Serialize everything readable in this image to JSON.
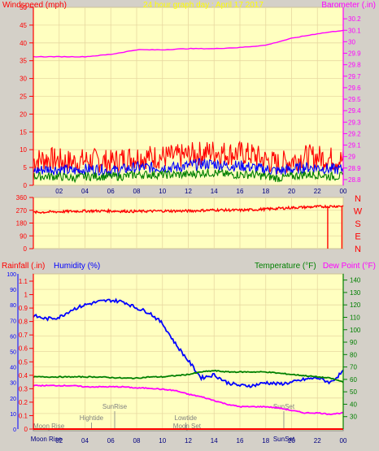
{
  "chart_data": [
    {
      "type": "line",
      "title": "24 hour graph day : April 17 2017",
      "ylabel": "Windspeed (mph)",
      "y2label": "Barometer (.in)",
      "xticks": [
        "02",
        "04",
        "06",
        "08",
        "10",
        "12",
        "14",
        "16",
        "18",
        "20",
        "22",
        "00"
      ],
      "ylim": [
        0,
        50
      ],
      "yticks": [
        "0",
        "5",
        "10",
        "15",
        "20",
        "25",
        "30",
        "35",
        "40",
        "45",
        "50"
      ],
      "y2lim": [
        28.75,
        30.3
      ],
      "y2ticks": [
        "28.8",
        "28.9",
        "29",
        "29.1",
        "29.2",
        "29.3",
        "29.4",
        "29.5",
        "29.6",
        "29.7",
        "29.8",
        "29.9",
        "30",
        "30.1",
        "30.2"
      ],
      "series": [
        {
          "name": "Windspeed (mph)",
          "color": "#ff0000",
          "x": [
            0,
            1,
            2,
            3,
            4,
            5,
            6,
            7,
            8,
            9,
            10,
            11,
            12,
            13,
            14,
            15,
            16,
            17,
            18,
            19,
            20,
            21,
            22,
            23,
            24
          ],
          "values": [
            7,
            7.5,
            7,
            6.5,
            7,
            7,
            6.5,
            7.5,
            8,
            8,
            8,
            8,
            8.5,
            9,
            9.5,
            9,
            9,
            8.5,
            7,
            6,
            7,
            8,
            8,
            7.5,
            7
          ]
        },
        {
          "name": "Wind average",
          "color": "#0000ff",
          "x": [
            0,
            1,
            2,
            3,
            4,
            5,
            6,
            7,
            8,
            9,
            10,
            11,
            12,
            13,
            14,
            15,
            16,
            17,
            18,
            19,
            20,
            21,
            22,
            23,
            24
          ],
          "values": [
            4,
            4.5,
            4.5,
            4,
            4.5,
            4.5,
            4,
            4.5,
            5,
            5,
            5,
            5,
            5.5,
            6,
            6,
            5.5,
            5.5,
            5,
            4.5,
            4,
            4.5,
            5,
            5,
            4.5,
            4.5
          ]
        },
        {
          "name": "Wind gust",
          "color": "#008000",
          "x": [
            0,
            1,
            2,
            3,
            4,
            5,
            6,
            7,
            8,
            9,
            10,
            11,
            12,
            13,
            14,
            15,
            16,
            17,
            18,
            19,
            20,
            21,
            22,
            23,
            24
          ],
          "values": [
            2.5,
            2.5,
            2.5,
            2,
            2.5,
            2.5,
            2.5,
            2.5,
            3,
            3,
            3,
            3,
            3,
            3.5,
            3.5,
            3,
            3,
            3,
            2.5,
            2,
            2.5,
            3,
            3,
            2.5,
            2.5
          ]
        },
        {
          "name": "Barometer (.in)",
          "color": "#ff00ff",
          "axis": "y2",
          "x": [
            0,
            2,
            4,
            6,
            8,
            10,
            12,
            14,
            16,
            18,
            20,
            22,
            24
          ],
          "values": [
            29.87,
            29.87,
            29.87,
            29.89,
            29.93,
            29.93,
            29.94,
            29.94,
            29.95,
            29.97,
            30.03,
            30.07,
            30.1
          ]
        }
      ]
    },
    {
      "type": "line",
      "ylabel": "Wind direction",
      "ylim": [
        0,
        360
      ],
      "yticks": [
        "0",
        "90",
        "180",
        "270",
        "360"
      ],
      "compass": [
        "N",
        "W",
        "S",
        "E",
        "N"
      ],
      "series": [
        {
          "name": "Wind direction",
          "color": "#ff0000",
          "x": [
            0,
            2,
            4,
            6,
            8,
            10,
            12,
            14,
            16,
            18,
            20,
            22,
            24
          ],
          "values": [
            255,
            260,
            265,
            265,
            262,
            265,
            265,
            272,
            270,
            278,
            288,
            295,
            300
          ],
          "spikes": [
            {
              "x": 22.8,
              "value": 0
            },
            {
              "x": 23.9,
              "value": 0
            }
          ]
        }
      ]
    },
    {
      "type": "line",
      "ylabel": "Rainfall (.in)",
      "y2label": "Humidity (%)",
      "y3label": "Temperature (°F)",
      "y4label": "Dew Point (°F)",
      "xticks": [
        "02",
        "04",
        "06",
        "08",
        "10",
        "12",
        "14",
        "16",
        "18",
        "20",
        "22",
        "00"
      ],
      "ylim": [
        0,
        100
      ],
      "yticks": [
        "0",
        "10",
        "20",
        "30",
        "40",
        "50",
        "60",
        "70",
        "80",
        "90",
        "100"
      ],
      "rain_ticks": [
        "0",
        "0.1",
        "0.2",
        "0.3",
        "0.4",
        "0.5",
        "0.6",
        "0.7",
        "0.8",
        "0.9",
        "1",
        "1.1"
      ],
      "temp_lim": [
        20,
        145
      ],
      "temp_ticks": [
        "30",
        "40",
        "50",
        "60",
        "70",
        "80",
        "90",
        "100",
        "110",
        "120",
        "130",
        "140"
      ],
      "series": [
        {
          "name": "Rainfall (.in)",
          "color": "#ff0000",
          "x": [
            0,
            24
          ],
          "values": [
            0,
            0
          ]
        },
        {
          "name": "Humidity (%)",
          "color": "#0000ff",
          "x": [
            0,
            1,
            2,
            3,
            4,
            5,
            6,
            7,
            8,
            9,
            10,
            11,
            12,
            13,
            14,
            15,
            16,
            17,
            18,
            19,
            20,
            21,
            22,
            23,
            24
          ],
          "values": [
            73,
            71,
            72,
            77,
            80,
            82,
            83,
            82,
            78,
            75,
            68,
            55,
            44,
            33,
            35,
            30,
            28,
            28,
            30,
            29,
            30,
            32,
            33,
            30,
            37
          ]
        },
        {
          "name": "Temperature (°F)",
          "color": "#008000",
          "x": [
            0,
            1,
            2,
            3,
            4,
            5,
            6,
            7,
            8,
            9,
            10,
            11,
            12,
            13,
            14,
            15,
            16,
            17,
            18,
            19,
            20,
            21,
            22,
            23,
            24
          ],
          "values": [
            62,
            62,
            62,
            62,
            62,
            62,
            61.5,
            61,
            61,
            62,
            62,
            63,
            64,
            66,
            67,
            66,
            66,
            66,
            66,
            65,
            64,
            63,
            62,
            61,
            58
          ]
        },
        {
          "name": "Dew Point (°F)",
          "color": "#ff00ff",
          "x": [
            0,
            1,
            2,
            3,
            4,
            5,
            6,
            7,
            8,
            9,
            10,
            11,
            12,
            13,
            14,
            15,
            16,
            17,
            18,
            19,
            20,
            21,
            22,
            23,
            24
          ],
          "values": [
            55,
            55,
            55,
            55,
            54,
            54,
            54,
            54,
            53,
            53,
            52,
            51,
            48,
            46,
            43,
            40,
            38,
            38,
            38,
            37,
            35,
            33,
            33,
            32,
            33
          ]
        }
      ],
      "annotations": [
        {
          "label": "Moon Rise",
          "x": 1.0,
          "row": "bottom"
        },
        {
          "label": "Moon Rise",
          "x": 1.2,
          "row": "low"
        },
        {
          "label": "Hightide",
          "x": 4.5,
          "row": "mid"
        },
        {
          "label": "SunRise",
          "x": 6.3,
          "row": "high"
        },
        {
          "label": "Lowtide",
          "x": 11.8,
          "row": "mid"
        },
        {
          "label": "Moon Set",
          "x": 11.9,
          "row": "low"
        },
        {
          "label": "SunSet",
          "x": 19.4,
          "row": "high"
        },
        {
          "label": "SunSet",
          "x": 19.4,
          "row": "bottom"
        }
      ]
    }
  ]
}
